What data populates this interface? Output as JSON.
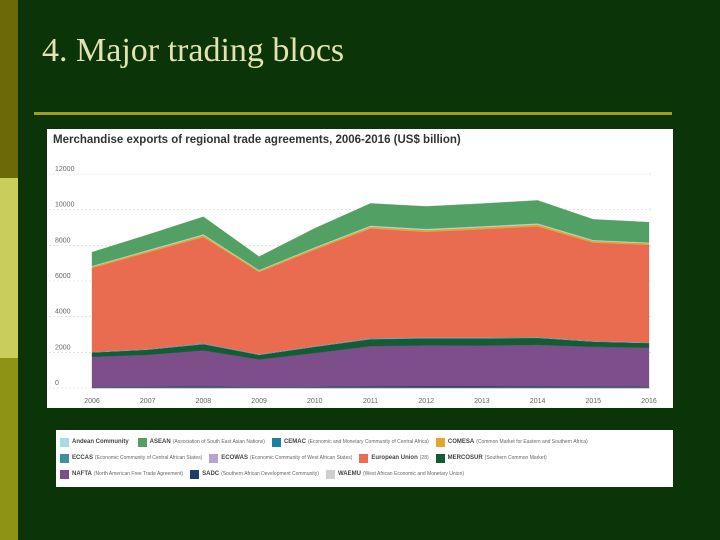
{
  "slide": {
    "title": "4. Major trading blocs"
  },
  "chart_data": {
    "type": "area",
    "stacked": true,
    "title": "Merchandise exports of regional trade agreements, 2006-2016 (US$ billion)",
    "x": [
      "2006",
      "2007",
      "2008",
      "2009",
      "2010",
      "2011",
      "2012",
      "2013",
      "2014",
      "2015",
      "2016"
    ],
    "ylim": [
      0,
      12000
    ],
    "yticks": [
      0,
      2000,
      4000,
      6000,
      8000,
      10000,
      12000
    ],
    "grid": "horizontal",
    "legend_position": "bottom",
    "series": [
      {
        "name": "SADC",
        "description": "(Southern African Development Community)",
        "color": "#1f3f6b",
        "values": [
          70,
          80,
          90,
          70,
          80,
          100,
          110,
          110,
          100,
          90,
          80
        ]
      },
      {
        "name": "NAFTA",
        "description": "(North American Free Trade Agreement)",
        "color": "#7e4e8a",
        "values": [
          1680,
          1780,
          2020,
          1530,
          1880,
          2250,
          2280,
          2270,
          2320,
          2220,
          2180
        ]
      },
      {
        "name": "MERCOSUR",
        "description": "(Southern Common Market)",
        "color": "#125d36",
        "values": [
          240,
          290,
          350,
          260,
          350,
          390,
          390,
          400,
          390,
          290,
          260
        ]
      },
      {
        "name": "ECOWAS",
        "description": "(Economic Community of West African States)",
        "color": "#b7a3cf",
        "values": [
          15,
          18,
          20,
          15,
          18,
          20,
          20,
          20,
          20,
          15,
          15
        ]
      },
      {
        "name": "ECCAS",
        "description": "(Economic Community of Central African States)",
        "color": "#3f8fa3",
        "values": [
          10,
          12,
          14,
          10,
          12,
          14,
          14,
          14,
          14,
          10,
          10
        ]
      },
      {
        "name": "CEMAC",
        "description": "(Economic and Monetary Community of Central Africa)",
        "color": "#1c7fa0",
        "values": [
          8,
          10,
          12,
          8,
          10,
          12,
          12,
          12,
          12,
          8,
          8
        ]
      },
      {
        "name": "WAEMU",
        "description": "(West African Economic and Monetary Union)",
        "color": "#cfcfcf",
        "values": [
          5,
          5,
          6,
          5,
          5,
          6,
          6,
          6,
          6,
          5,
          5
        ]
      },
      {
        "name": "European Union (28)",
        "description": "",
        "color": "#e96b50",
        "values": [
          4700,
          5400,
          5950,
          4600,
          5400,
          6150,
          5920,
          6070,
          6200,
          5510,
          5470
        ]
      },
      {
        "name": "COMESA",
        "description": "(Common Market for Eastern and Southern Africa)",
        "color": "#e7a330",
        "values": [
          80,
          90,
          100,
          80,
          90,
          100,
          110,
          110,
          110,
          100,
          90
        ]
      },
      {
        "name": "Andean Community",
        "description": "",
        "color": "#a7d9ec",
        "values": [
          40,
          50,
          60,
          40,
          50,
          60,
          60,
          60,
          60,
          50,
          40
        ]
      },
      {
        "name": "ASEAN",
        "description": "(Association of South East Asian Nations)",
        "color": "#52a064",
        "values": [
          770,
          860,
          980,
          750,
          1060,
          1250,
          1260,
          1270,
          1290,
          1160,
          1140
        ]
      }
    ]
  },
  "legend": {
    "rows": [
      [
        {
          "name": "Andean Community",
          "description": "",
          "color": "#a7d9ec"
        },
        {
          "name": "ASEAN",
          "description": "(Association of South East Asian Nations)",
          "color": "#52a064"
        },
        {
          "name": "CEMAC",
          "description": "(Economic and Monetary Community of Central Africa)",
          "color": "#1c7fa0"
        },
        {
          "name": "COMESA",
          "description": "(Common Market for Eastern and Southern Africa)",
          "color": "#e7a330"
        }
      ],
      [
        {
          "name": "ECCAS",
          "description": "(Economic Community of Central African States)",
          "color": "#3f8fa3"
        },
        {
          "name": "ECOWAS",
          "description": "(Economic Community of West African States)",
          "color": "#b7a3cf"
        },
        {
          "name": "European Union",
          "description": "(28)",
          "color": "#e96b50"
        },
        {
          "name": "MERCOSUR",
          "description": "(Southern Common Market)",
          "color": "#125d36"
        }
      ],
      [
        {
          "name": "NAFTA",
          "description": "(North American Free Trade Agreement)",
          "color": "#7e4e8a"
        },
        {
          "name": "SADC",
          "description": "(Southern African Development Community)",
          "color": "#1f3f6b"
        },
        {
          "name": "WAEMU",
          "description": "(West African Economic and Monetary Union)",
          "color": "#cfcfcf"
        }
      ]
    ]
  }
}
